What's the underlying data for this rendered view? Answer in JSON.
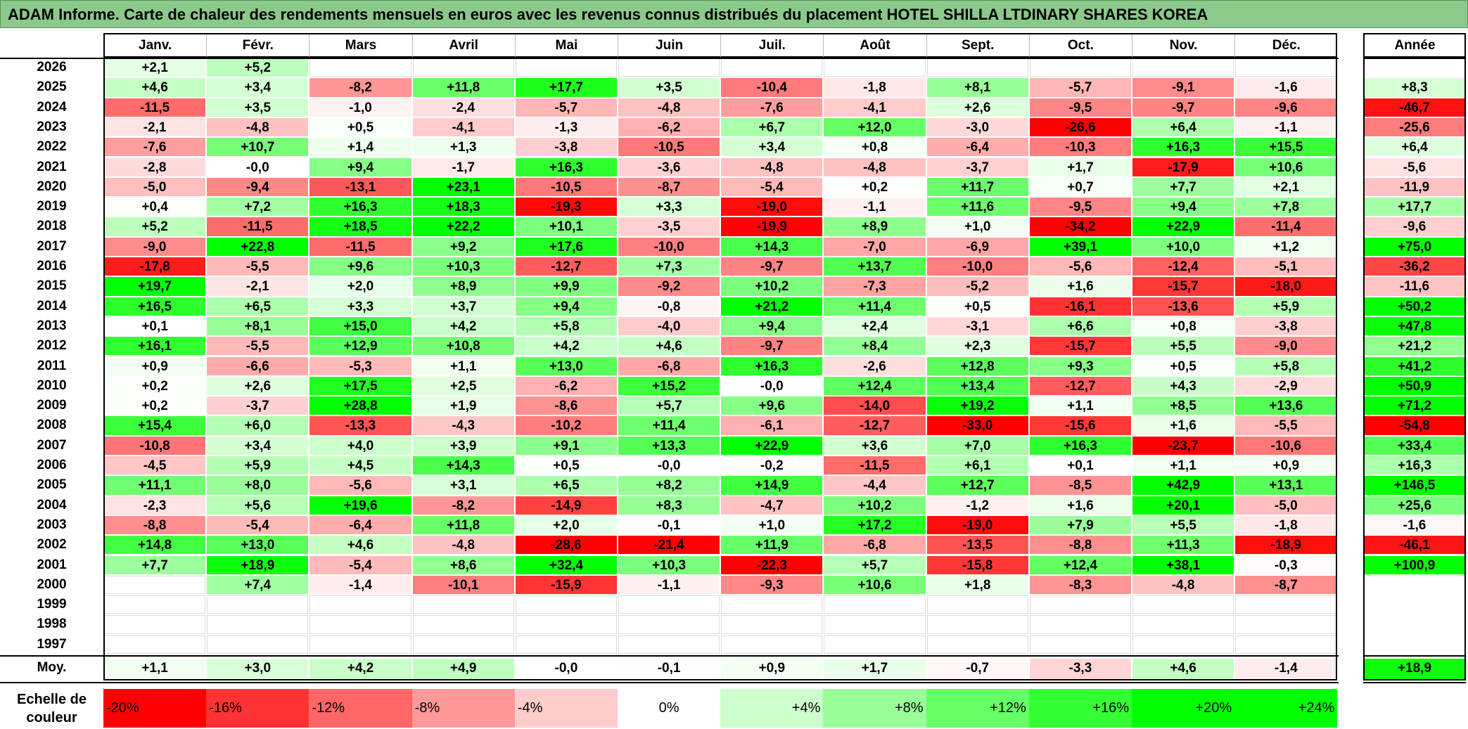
{
  "title": "ADAM Informe. Carte de chaleur des rendements mensuels en euros avec les revenus connus distribués du placement HOTEL SHILLA LTDINARY SHARES KOREA",
  "months": [
    "Janv.",
    "Févr.",
    "Mars",
    "Avril",
    "Mai",
    "Juin",
    "Juil.",
    "Août",
    "Sept.",
    "Oct.",
    "Nov.",
    "Déc."
  ],
  "annual_header": "Année",
  "avg_label": "Moy.",
  "scale_label": "Echelle de couleur",
  "chart_data": {
    "type": "heatmap",
    "title": "ADAM Informe. Carte de chaleur des rendements mensuels en euros avec les revenus connus distribués du placement HOTEL SHILLA LTDINARY SHARES KOREA",
    "x": [
      "Janv.",
      "Févr.",
      "Mars",
      "Avril",
      "Mai",
      "Juin",
      "Juil.",
      "Août",
      "Sept.",
      "Oct.",
      "Nov.",
      "Déc."
    ],
    "rows": [
      {
        "year": "2026",
        "months": [
          "+2,1",
          "+5,2",
          "",
          "",
          "",
          "",
          "",
          "",
          "",
          "",
          "",
          ""
        ],
        "annual": ""
      },
      {
        "year": "2025",
        "months": [
          "+4,6",
          "+3,4",
          "-8,2",
          "+11,8",
          "+17,7",
          "+3,5",
          "-10,4",
          "-1,8",
          "+8,1",
          "-5,7",
          "-9,1",
          "-1,6"
        ],
        "annual": "+8,3"
      },
      {
        "year": "2024",
        "months": [
          "-11,5",
          "+3,5",
          "-1,0",
          "-2,4",
          "-5,7",
          "-4,8",
          "-7,6",
          "-4,1",
          "+2,6",
          "-9,5",
          "-9,7",
          "-9,6"
        ],
        "annual": "-46,7"
      },
      {
        "year": "2023",
        "months": [
          "-2,1",
          "-4,8",
          "+0,5",
          "-4,1",
          "-1,3",
          "-6,2",
          "+6,7",
          "+12,0",
          "-3,0",
          "-26,6",
          "+6,4",
          "-1,1"
        ],
        "annual": "-25,6"
      },
      {
        "year": "2022",
        "months": [
          "-7,6",
          "+10,7",
          "+1,4",
          "+1,3",
          "-3,8",
          "-10,5",
          "+3,4",
          "+0,8",
          "-6,4",
          "-10,3",
          "+16,3",
          "+15,5"
        ],
        "annual": "+6,4"
      },
      {
        "year": "2021",
        "months": [
          "-2,8",
          "-0,0",
          "+9,4",
          "-1,7",
          "+16,3",
          "-3,6",
          "-4,8",
          "-4,8",
          "-3,7",
          "+1,7",
          "-17,9",
          "+10,6"
        ],
        "annual": "-5,6"
      },
      {
        "year": "2020",
        "months": [
          "-5,0",
          "-9,4",
          "-13,1",
          "+23,1",
          "-10,5",
          "-8,7",
          "-5,4",
          "+0,2",
          "+11,7",
          "+0,7",
          "+7,7",
          "+2,1"
        ],
        "annual": "-11,9"
      },
      {
        "year": "2019",
        "months": [
          "+0,4",
          "+7,2",
          "+16,3",
          "+18,3",
          "-19,3",
          "+3,3",
          "-19,0",
          "-1,1",
          "+11,6",
          "-9,5",
          "+9,4",
          "+7,8"
        ],
        "annual": "+17,7"
      },
      {
        "year": "2018",
        "months": [
          "+5,2",
          "-11,5",
          "+18,5",
          "+22,2",
          "+10,1",
          "-3,5",
          "-19,9",
          "+8,9",
          "+1,0",
          "-34,2",
          "+22,9",
          "-11,4"
        ],
        "annual": "-9,6"
      },
      {
        "year": "2017",
        "months": [
          "-9,0",
          "+22,8",
          "-11,5",
          "+9,2",
          "+17,6",
          "-10,0",
          "+14,3",
          "-7,0",
          "-6,9",
          "+39,1",
          "+10,0",
          "+1,2"
        ],
        "annual": "+75,0"
      },
      {
        "year": "2016",
        "months": [
          "-17,8",
          "-5,5",
          "+9,6",
          "+10,3",
          "-12,7",
          "+7,3",
          "-9,7",
          "+13,7",
          "-10,0",
          "-5,6",
          "-12,4",
          "-5,1"
        ],
        "annual": "-36,2"
      },
      {
        "year": "2015",
        "months": [
          "+19,7",
          "-2,1",
          "+2,0",
          "+8,9",
          "+9,9",
          "-9,2",
          "+10,2",
          "-7,3",
          "-5,2",
          "+1,6",
          "-15,7",
          "-18,0"
        ],
        "annual": "-11,6"
      },
      {
        "year": "2014",
        "months": [
          "+16,5",
          "+6,5",
          "+3,3",
          "+3,7",
          "+9,4",
          "-0,8",
          "+21,2",
          "+11,4",
          "+0,5",
          "-16,1",
          "-13,6",
          "+5,9"
        ],
        "annual": "+50,2"
      },
      {
        "year": "2013",
        "months": [
          "+0,1",
          "+8,1",
          "+15,0",
          "+4,2",
          "+5,8",
          "-4,0",
          "+9,4",
          "+2,4",
          "-3,1",
          "+6,6",
          "+0,8",
          "-3,8"
        ],
        "annual": "+47,8"
      },
      {
        "year": "2012",
        "months": [
          "+16,1",
          "-5,5",
          "+12,9",
          "+10,8",
          "+4,2",
          "+4,6",
          "-9,7",
          "+8,4",
          "+2,3",
          "-15,7",
          "+5,5",
          "-9,0"
        ],
        "annual": "+21,2"
      },
      {
        "year": "2011",
        "months": [
          "+0,9",
          "-6,6",
          "-5,3",
          "+1,1",
          "+13,0",
          "-6,8",
          "+16,3",
          "-2,6",
          "+12,8",
          "+9,3",
          "+0,5",
          "+5,8"
        ],
        "annual": "+41,2"
      },
      {
        "year": "2010",
        "months": [
          "+0,2",
          "+2,6",
          "+17,5",
          "+2,5",
          "-6,2",
          "+15,2",
          "-0,0",
          "+12,4",
          "+13,4",
          "-12,7",
          "+4,3",
          "-2,9"
        ],
        "annual": "+50,9"
      },
      {
        "year": "2009",
        "months": [
          "+0,2",
          "-3,7",
          "+28,8",
          "+1,9",
          "-8,6",
          "+5,7",
          "+9,6",
          "-14,0",
          "+19,2",
          "+1,1",
          "+8,5",
          "+13,6"
        ],
        "annual": "+71,2"
      },
      {
        "year": "2008",
        "months": [
          "+15,4",
          "+6,0",
          "-13,3",
          "-4,3",
          "-10,2",
          "+11,4",
          "-6,1",
          "-12,7",
          "-33,0",
          "-15,6",
          "+1,6",
          "-5,5"
        ],
        "annual": "-54,8"
      },
      {
        "year": "2007",
        "months": [
          "-10,8",
          "+3,4",
          "+4,0",
          "+3,9",
          "+9,1",
          "+13,3",
          "+22,9",
          "+3,6",
          "+7,0",
          "+16,3",
          "-23,7",
          "-10,6"
        ],
        "annual": "+33,4"
      },
      {
        "year": "2006",
        "months": [
          "-4,5",
          "+5,9",
          "+4,5",
          "+14,3",
          "+0,5",
          "-0,0",
          "-0,2",
          "-11,5",
          "+6,1",
          "+0,1",
          "+1,1",
          "+0,9"
        ],
        "annual": "+16,3"
      },
      {
        "year": "2005",
        "months": [
          "+11,1",
          "+8,0",
          "-5,6",
          "+3,1",
          "+6,5",
          "+8,2",
          "+14,9",
          "-4,4",
          "+12,7",
          "-8,5",
          "+42,9",
          "+13,1"
        ],
        "annual": "+146,5"
      },
      {
        "year": "2004",
        "months": [
          "-2,3",
          "+5,6",
          "+19,6",
          "-8,2",
          "-14,9",
          "+8,3",
          "-4,7",
          "+10,2",
          "-1,2",
          "+1,6",
          "+20,1",
          "-5,0"
        ],
        "annual": "+25,6"
      },
      {
        "year": "2003",
        "months": [
          "-8,8",
          "-5,4",
          "-6,4",
          "+11,8",
          "+2,0",
          "-0,1",
          "+1,0",
          "+17,2",
          "-19,0",
          "+7,9",
          "+5,5",
          "-1,8"
        ],
        "annual": "-1,6"
      },
      {
        "year": "2002",
        "months": [
          "+14,8",
          "+13,0",
          "+4,6",
          "-4,8",
          "-28,6",
          "-21,4",
          "+11,9",
          "-6,8",
          "-13,5",
          "-8,8",
          "+11,3",
          "-18,9"
        ],
        "annual": "-46,1"
      },
      {
        "year": "2001",
        "months": [
          "+7,7",
          "+18,9",
          "-5,4",
          "+8,6",
          "+32,4",
          "+10,3",
          "-22,3",
          "+5,7",
          "-15,8",
          "+12,4",
          "+38,1",
          "-0,3"
        ],
        "annual": "+100,9"
      },
      {
        "year": "2000",
        "months": [
          "",
          "+7,4",
          "-1,4",
          "-10,1",
          "-15,9",
          "-1,1",
          "-9,3",
          "+10,6",
          "+1,8",
          "-8,3",
          "-4,8",
          "-8,7"
        ],
        "annual": ""
      },
      {
        "year": "1999",
        "months": [
          "",
          "",
          "",
          "",
          "",
          "",
          "",
          "",
          "",
          "",
          "",
          ""
        ],
        "annual": ""
      },
      {
        "year": "1998",
        "months": [
          "",
          "",
          "",
          "",
          "",
          "",
          "",
          "",
          "",
          "",
          "",
          ""
        ],
        "annual": ""
      },
      {
        "year": "1997",
        "months": [
          "",
          "",
          "",
          "",
          "",
          "",
          "",
          "",
          "",
          "",
          "",
          ""
        ],
        "annual": ""
      }
    ],
    "averages": {
      "months": [
        "+1,1",
        "+3,0",
        "+4,2",
        "+4,9",
        "-0,0",
        "-0,1",
        "+0,9",
        "+1,7",
        "-0,7",
        "-3,3",
        "+4,6",
        "-1,4"
      ],
      "annual": "+18,9"
    },
    "color_scale": [
      {
        "label": "-20%",
        "value": -20
      },
      {
        "label": "-16%",
        "value": -16
      },
      {
        "label": "-12%",
        "value": -12
      },
      {
        "label": "-8%",
        "value": -8
      },
      {
        "label": "-4%",
        "value": -4
      },
      {
        "label": "0%",
        "value": 0
      },
      {
        "label": "+4%",
        "value": 4
      },
      {
        "label": "+8%",
        "value": 8
      },
      {
        "label": "+12%",
        "value": 12
      },
      {
        "label": "+16%",
        "value": 16
      },
      {
        "label": "+20%",
        "value": 20
      },
      {
        "label": "+24%",
        "value": 24
      }
    ],
    "colors": {
      "negative": "#ff0000",
      "neutral": "#ffffff",
      "positive": "#00ff00"
    }
  }
}
